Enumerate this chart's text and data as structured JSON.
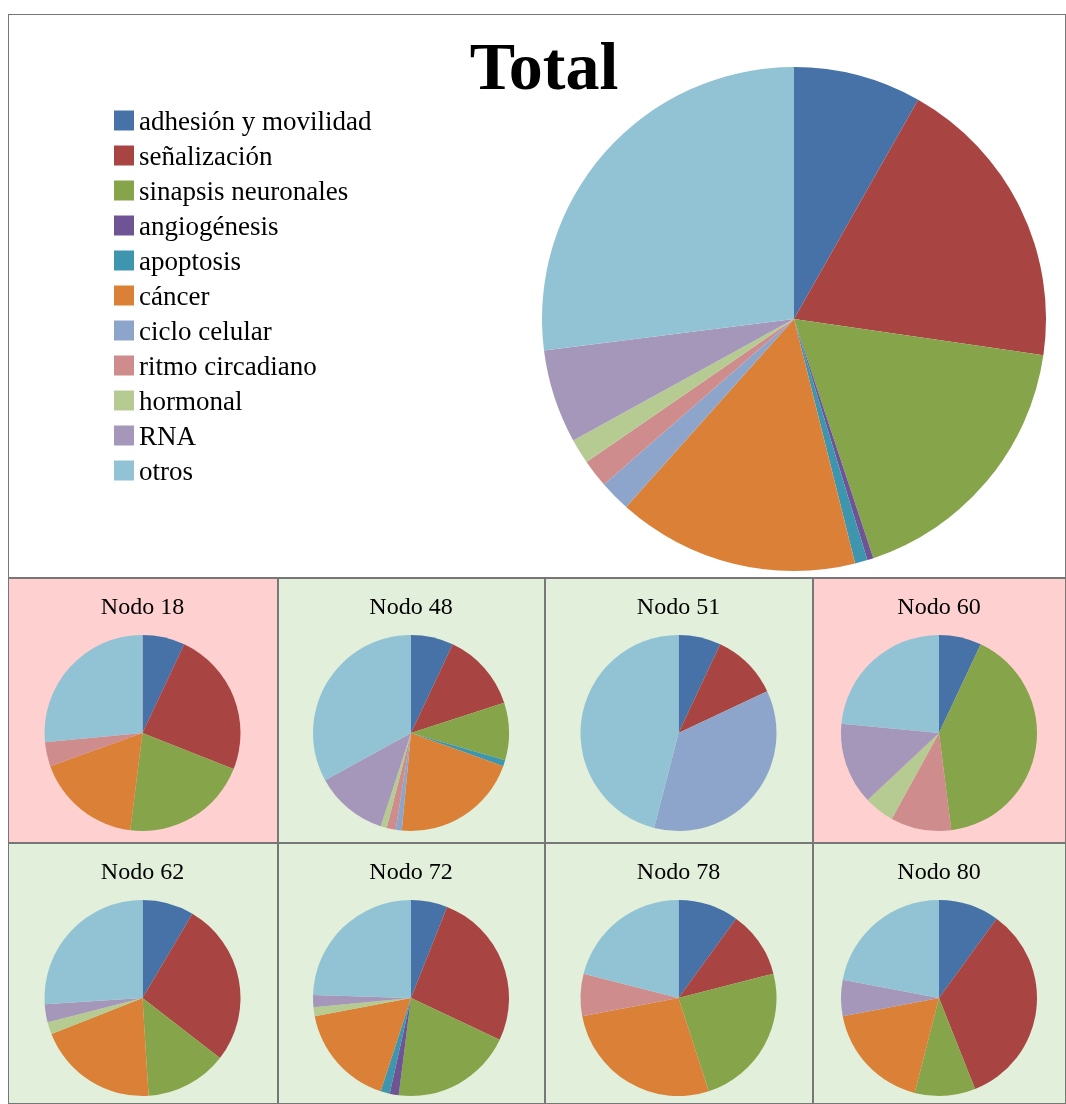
{
  "chart_data": [
    {
      "type": "pie",
      "title": "Total",
      "legend": "left",
      "categories": [
        "adhesión y movilidad",
        "señalización",
        "sinapsis neuronales",
        "angiogénesis",
        "apoptosis",
        "cáncer",
        "ciclo celular",
        "ritmo circadiano",
        "hormonal",
        "RNA",
        "otros"
      ],
      "values": [
        8.2,
        19.1,
        17.6,
        0.4,
        0.8,
        15.5,
        2,
        1.8,
        1.6,
        6,
        27
      ],
      "colors": [
        "#4672a8",
        "#a84543",
        "#86a44a",
        "#6e5495",
        "#3d96ae",
        "#da8137",
        "#8ea5cb",
        "#ce8d8c",
        "#b5cb92",
        "#a597b9",
        "#92c3d4"
      ]
    },
    {
      "type": "pie",
      "title": "Nodo 18",
      "legend": false,
      "categories": [
        null,
        null,
        null,
        null,
        null,
        null
      ],
      "values": [
        7,
        24,
        21,
        17.5,
        4,
        26.5
      ],
      "colors": [
        "#4672a8",
        "#a84543",
        "#86a44a",
        "#da8137",
        "#ce8d8c",
        "#92c3d4"
      ]
    },
    {
      "type": "pie",
      "title": "Nodo 48",
      "legend": false,
      "categories": [
        null,
        null,
        null,
        null,
        null,
        null,
        null,
        null,
        null,
        null
      ],
      "values": [
        7,
        13,
        9.5,
        1,
        21,
        1,
        1.5,
        1,
        12,
        33
      ],
      "colors": [
        "#4672a8",
        "#a84543",
        "#86a44a",
        "#3d96ae",
        "#da8137",
        "#8ea5cb",
        "#ce8d8c",
        "#b5cb92",
        "#a597b9",
        "#92c3d4"
      ]
    },
    {
      "type": "pie",
      "title": "Nodo 51",
      "legend": false,
      "categories": [
        null,
        null,
        null,
        null
      ],
      "values": [
        7,
        11,
        36,
        46
      ],
      "colors": [
        "#4672a8",
        "#a84543",
        "#8ea5cb",
        "#92c3d4"
      ]
    },
    {
      "type": "pie",
      "title": "Nodo 60",
      "legend": false,
      "categories": [
        null,
        null,
        null,
        null,
        null,
        null
      ],
      "values": [
        7,
        41,
        10,
        5,
        13.5,
        23.5
      ],
      "colors": [
        "#4672a8",
        "#86a44a",
        "#ce8d8c",
        "#b5cb92",
        "#a597b9",
        "#92c3d4"
      ]
    },
    {
      "type": "pie",
      "title": "Nodo 62",
      "legend": false,
      "categories": [
        null,
        null,
        null,
        null,
        null,
        null,
        null
      ],
      "values": [
        8.5,
        27,
        13.5,
        20,
        2,
        3,
        26
      ],
      "colors": [
        "#4672a8",
        "#a84543",
        "#86a44a",
        "#da8137",
        "#b5cb92",
        "#a597b9",
        "#92c3d4"
      ]
    },
    {
      "type": "pie",
      "title": "Nodo 72",
      "legend": false,
      "categories": [
        null,
        null,
        null,
        null,
        null,
        null,
        null,
        null,
        null
      ],
      "values": [
        6,
        26,
        20,
        1.5,
        1.5,
        17,
        1.5,
        2,
        24.5
      ],
      "colors": [
        "#4672a8",
        "#a84543",
        "#86a44a",
        "#6e5495",
        "#3d96ae",
        "#da8137",
        "#b5cb92",
        "#a597b9",
        "#92c3d4"
      ]
    },
    {
      "type": "pie",
      "title": "Nodo 78",
      "legend": false,
      "categories": [
        null,
        null,
        null,
        null,
        null,
        null
      ],
      "values": [
        10,
        11,
        24,
        27,
        7,
        21
      ],
      "colors": [
        "#4672a8",
        "#a84543",
        "#86a44a",
        "#da8137",
        "#ce8d8c",
        "#92c3d4"
      ]
    },
    {
      "type": "pie",
      "title": "Nodo 80",
      "legend": false,
      "categories": [
        null,
        null,
        null,
        null,
        null,
        null
      ],
      "values": [
        10,
        34,
        10,
        18,
        6,
        22
      ],
      "colors": [
        "#4672a8",
        "#a84543",
        "#86a44a",
        "#da8137",
        "#a597b9",
        "#92c3d4"
      ]
    }
  ]
}
